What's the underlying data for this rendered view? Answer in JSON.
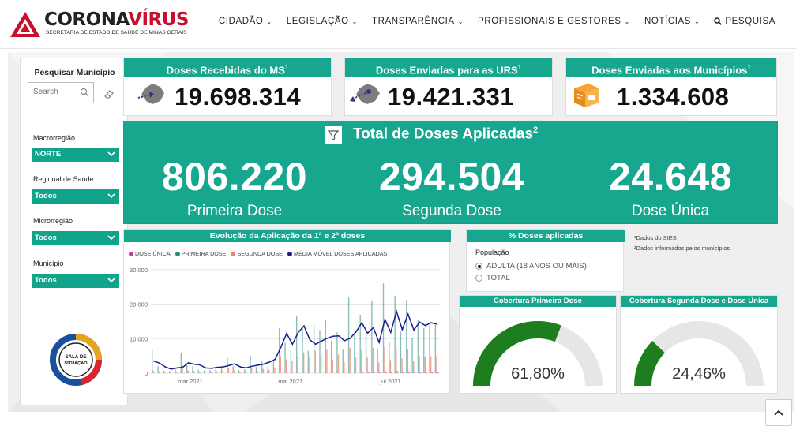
{
  "header": {
    "logo_title_main": "CORONA",
    "logo_title_accent": "VÍRUS",
    "logo_subtitle": "SECRETARIA DE ESTADO DE SAÚDE DE MINAS GERAIS",
    "nav": [
      {
        "label": "CIDADÃO",
        "icon": "chevron-down-icon"
      },
      {
        "label": "LEGISLAÇÃO",
        "icon": "chevron-down-icon"
      },
      {
        "label": "TRANSPARÊNCIA",
        "icon": "chevron-down-icon"
      },
      {
        "label": "PROFISSIONAIS E GESTORES",
        "icon": "chevron-down-icon"
      },
      {
        "label": "NOTÍCIAS",
        "icon": "chevron-down-icon"
      }
    ],
    "search_label": "PESQUISA"
  },
  "filters": {
    "title": "Pesquisar Município",
    "search_placeholder": "Search",
    "fields": [
      {
        "label": "Macrorregião",
        "value": "NORTE"
      },
      {
        "label": "Regional de Saúde",
        "value": "Todos"
      },
      {
        "label": "Microrregião",
        "value": "Todos"
      },
      {
        "label": "Município",
        "value": "Todos"
      }
    ],
    "badge_text": [
      "SALA DE",
      "SITUAÇÃO"
    ]
  },
  "cards": [
    {
      "title": "Doses Recebidas do MS",
      "sup": "1",
      "value": "19.698.314",
      "icon": "map-arrow-in-icon"
    },
    {
      "title": "Doses Enviadas para as URS",
      "sup": "1",
      "value": "19.421.331",
      "icon": "map-arrow-out-icon"
    },
    {
      "title": "Doses Enviadas aos Municípios",
      "sup": "1",
      "value": "1.334.608",
      "icon": "package-icon"
    }
  ],
  "total": {
    "title": "Total de Doses Aplicadas",
    "sup": "2",
    "items": [
      {
        "value": "806.220",
        "label": "Primeira Dose"
      },
      {
        "value": "294.504",
        "label": "Segunda Dose"
      },
      {
        "value": "24.648",
        "label": "Dose Única"
      }
    ]
  },
  "chart": {
    "title": "Evolução da Aplicação da 1ª e 2ª doses",
    "legend": [
      {
        "label": "DOSE ÚNICA",
        "color": "#c43c9a"
      },
      {
        "label": "PRIMEIRA DOSE",
        "color": "#2a8a7b"
      },
      {
        "label": "SEGUNDA DOSE",
        "color": "#e8856a"
      },
      {
        "label": "MÉDIA MÓVEL DOSES APLICADAS",
        "color": "#1d1f8f"
      }
    ]
  },
  "chart_data": {
    "type": "bar",
    "title": "Evolução da Aplicação da 1ª e 2ª doses",
    "x_start": "2021-02-05",
    "x_end": "2021-07-31",
    "x_ticks": [
      "mar 2021",
      "mai 2021",
      "jul 2021"
    ],
    "y_ticks": [
      "0",
      "10.000",
      "20.000",
      "30.000"
    ],
    "ylim": [
      0,
      32000
    ],
    "series": [
      {
        "name": "MÉDIA MÓVEL DOSES APLICADAS",
        "type": "line",
        "color": "#1d1f8f",
        "values": [
          3500,
          2900,
          1800,
          1200,
          1500,
          1700,
          3000,
          2600,
          2400,
          1500,
          1400,
          1700,
          1800,
          2200,
          2700,
          1800,
          1500,
          2000,
          2300,
          2600,
          3200,
          4000,
          7500,
          11500,
          8400,
          11800,
          13700,
          9700,
          8400,
          9300,
          10100,
          10700,
          10800,
          9400,
          10100,
          12000,
          14600,
          11600,
          13200,
          8900,
          15600,
          11800,
          17900,
          12600,
          17100,
          12500,
          14800,
          13800,
          14600,
          14200
        ]
      },
      {
        "name": "PRIMEIRA DOSE",
        "type": "bar",
        "color": "#2a8a7b",
        "values": [
          6800,
          2000,
          800,
          600,
          1200,
          6000,
          2400,
          2000,
          1000,
          800,
          900,
          1600,
          1800,
          4500,
          2000,
          900,
          1100,
          5000,
          1800,
          3400,
          1800,
          3500,
          13000,
          8800,
          6500,
          16500,
          13500,
          6500,
          13900,
          12500,
          15500,
          9300,
          11800,
          6800,
          22000,
          11500,
          16900,
          11500,
          21000,
          6800,
          26000,
          9000,
          22400,
          12000,
          21200,
          10300,
          15500,
          13000,
          13800,
          14000
        ]
      },
      {
        "name": "SEGUNDA DOSE",
        "type": "bar",
        "color": "#e8856a",
        "values": [
          800,
          500,
          200,
          200,
          400,
          2200,
          800,
          700,
          300,
          200,
          300,
          600,
          700,
          1500,
          900,
          400,
          500,
          1400,
          700,
          1200,
          900,
          1500,
          5000,
          4000,
          3500,
          4800,
          6000,
          4500,
          6500,
          5200,
          6800,
          3900,
          5400,
          3200,
          7400,
          4800,
          6600,
          4500,
          7300,
          3100,
          7600,
          3800,
          6900,
          4300,
          7000,
          3400,
          5000,
          4700,
          4900,
          5000
        ]
      },
      {
        "name": "DOSE ÚNICA",
        "type": "bar",
        "color": "#c43c9a",
        "values": [
          0,
          0,
          0,
          0,
          0,
          0,
          0,
          0,
          0,
          0,
          0,
          0,
          0,
          0,
          0,
          0,
          0,
          0,
          0,
          0,
          0,
          0,
          0,
          0,
          0,
          0,
          0,
          0,
          0,
          0,
          0,
          0,
          0,
          0,
          0,
          0,
          200,
          300,
          400,
          200,
          500,
          300,
          600,
          400,
          500,
          300,
          400,
          300,
          300,
          400
        ]
      }
    ]
  },
  "percent_panel": {
    "title": "% Doses aplicadas",
    "population_label": "População",
    "options": [
      {
        "label": "ADULTA (18 ANOS OU MAIS)",
        "selected": true
      },
      {
        "label": "TOTAL",
        "selected": false
      }
    ]
  },
  "notes": [
    "¹Dados do SIES",
    "²Dados informados pelos municípios"
  ],
  "gauges": [
    {
      "title": "Cobertura Primeira Dose",
      "value": 0.618,
      "label": "61,80%"
    },
    {
      "title": "Cobertura Segunda Dose e Dose Única",
      "value": 0.2446,
      "label": "24,46%"
    }
  ],
  "colors": {
    "teal": "#17a68e",
    "gauge_fill": "#1e7d1e",
    "gauge_track": "#e6e6e6",
    "brand_red": "#c8102e"
  }
}
